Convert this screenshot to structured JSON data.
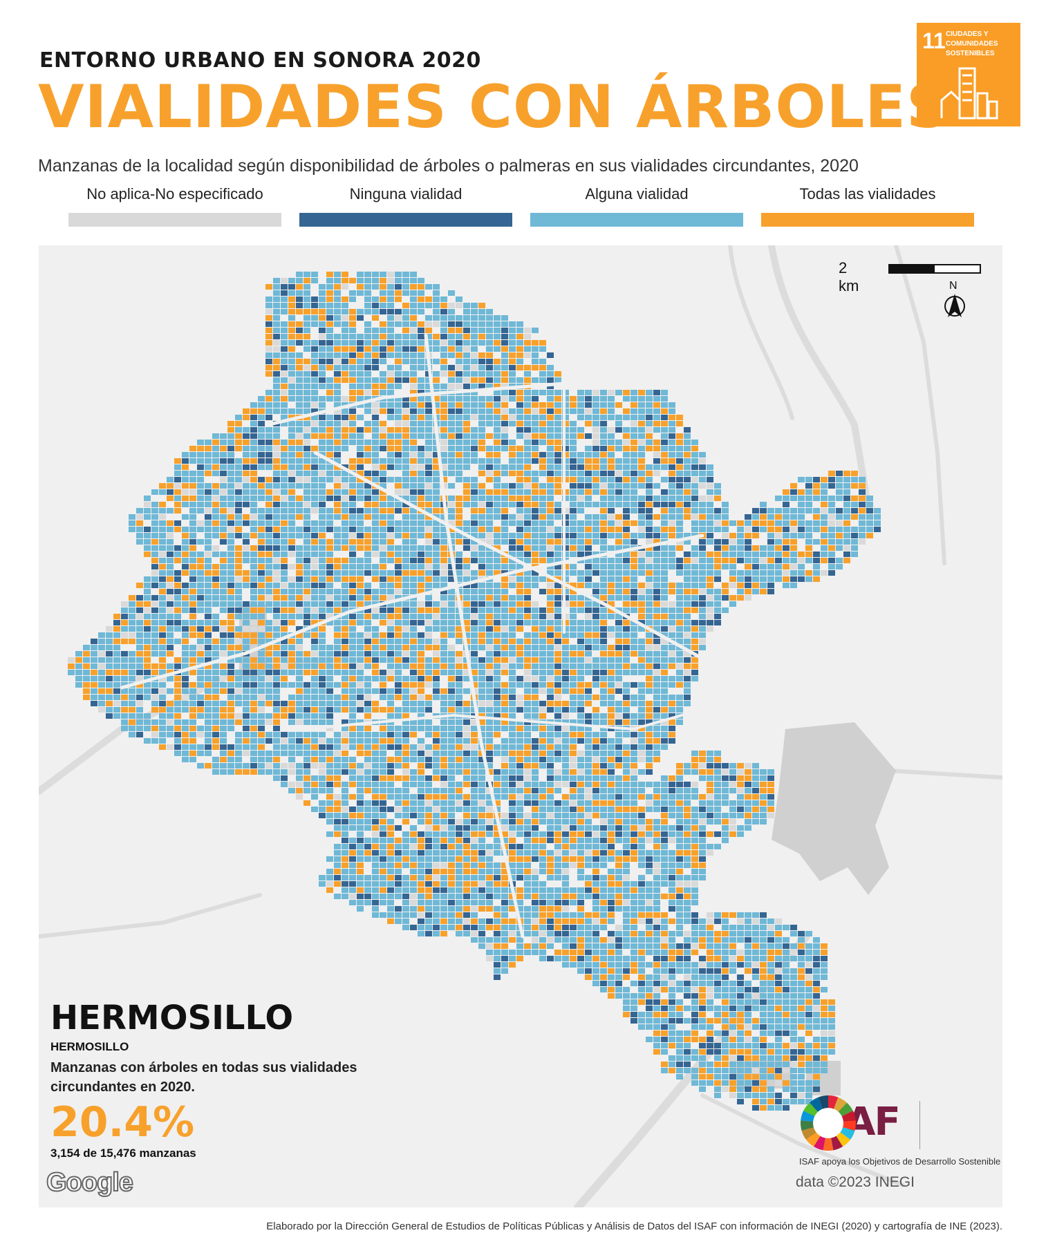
{
  "header": {
    "kicker": "ENTORNO URBANO EN SONORA 2020",
    "title": "VIALIDADES CON ÁRBOLES",
    "subtitle": "Manzanas de la localidad según disponibilidad de árboles o palmeras en sus vialidades circundantes, 2020"
  },
  "sdg_badge": {
    "number": "11",
    "text": "CIUDADES Y COMUNIDADES SOSTENIBLES",
    "color": "#f99d26"
  },
  "legend": [
    {
      "label": "No aplica-No especificado",
      "color": "#d9d9d9"
    },
    {
      "label": "Ninguna vialidad",
      "color": "#356592"
    },
    {
      "label": "Alguna vialidad",
      "color": "#6fb8d6"
    },
    {
      "label": "Todas las vialidades",
      "color": "#f7a12c"
    }
  ],
  "map": {
    "scale_label": "2 km",
    "north_label": "N",
    "google_label": "Google",
    "map_data": "data ©2023 INEGI"
  },
  "info": {
    "city": "HERMOSILLO",
    "municipality": "HERMOSILLO",
    "description": "Manzanas con árboles en todas sus vialidades circundantes en 2020.",
    "percentage": "20.4%",
    "count": "3,154 de 15,476 manzanas"
  },
  "logos": {
    "isaf": "ISAF",
    "isaf_caption": "ISAF apoya los Objetivos de Desarrollo Sostenible"
  },
  "footer": "Elaborado por la Dirección General de Estudios de Políticas Públicas y Análisis de Datos del ISAF con información de INEGI (2020) y cartografía de INE (2023)."
}
